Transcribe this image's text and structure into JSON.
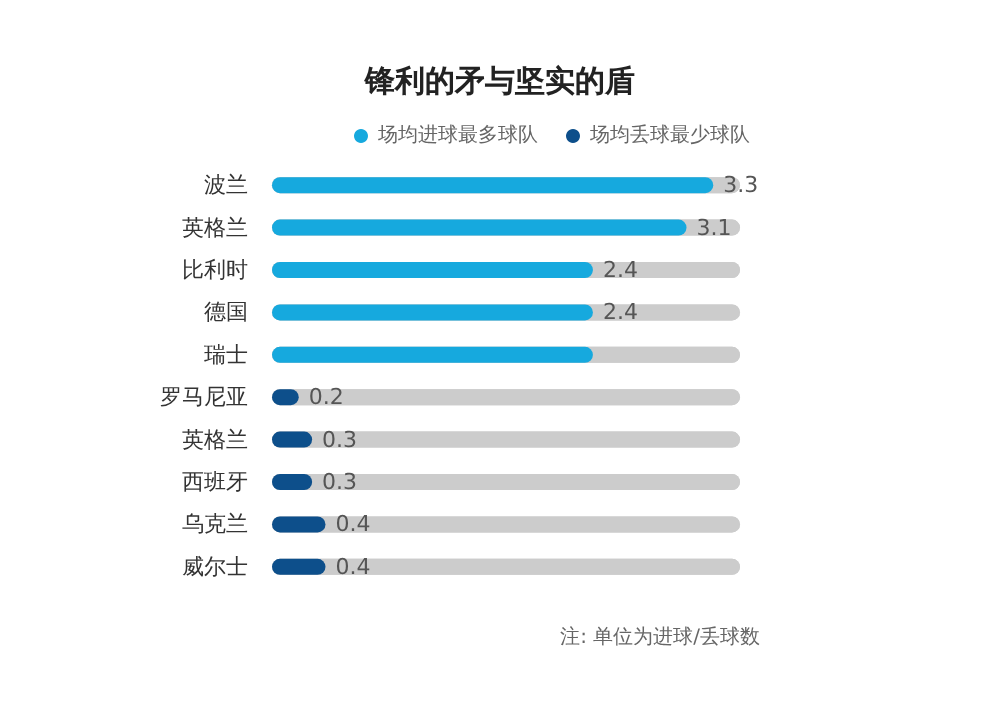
{
  "chart_data": {
    "type": "bar",
    "orientation": "horizontal",
    "title": "锋利的矛与坚实的盾",
    "categories": [
      "波兰",
      "英格兰",
      "比利时",
      "德国",
      "瑞士",
      "罗马尼亚",
      "英格兰",
      "西班牙",
      "乌克兰",
      "威尔士"
    ],
    "series": [
      {
        "name": "场均进球最多球队",
        "color": "#16a9de",
        "values": [
          3.3,
          3.1,
          2.4,
          2.4,
          2.4,
          null,
          null,
          null,
          null,
          null
        ],
        "value_labels": [
          "3.3",
          "3.1",
          "2.4",
          "2.4",
          null,
          null,
          null,
          null,
          null,
          null
        ]
      },
      {
        "name": "场均丢球最少球队",
        "color": "#0d4f8b",
        "values": [
          null,
          null,
          null,
          null,
          null,
          0.2,
          0.3,
          0.3,
          0.4,
          0.4
        ],
        "value_labels": [
          null,
          null,
          null,
          null,
          null,
          "0.2",
          "0.3",
          "0.3",
          "0.4",
          "0.4"
        ]
      }
    ],
    "xlim": [
      0,
      3.5
    ],
    "tick_labels": "y",
    "legend": "top right",
    "annotations": [
      "注: 单位为进球/丢球数"
    ]
  }
}
